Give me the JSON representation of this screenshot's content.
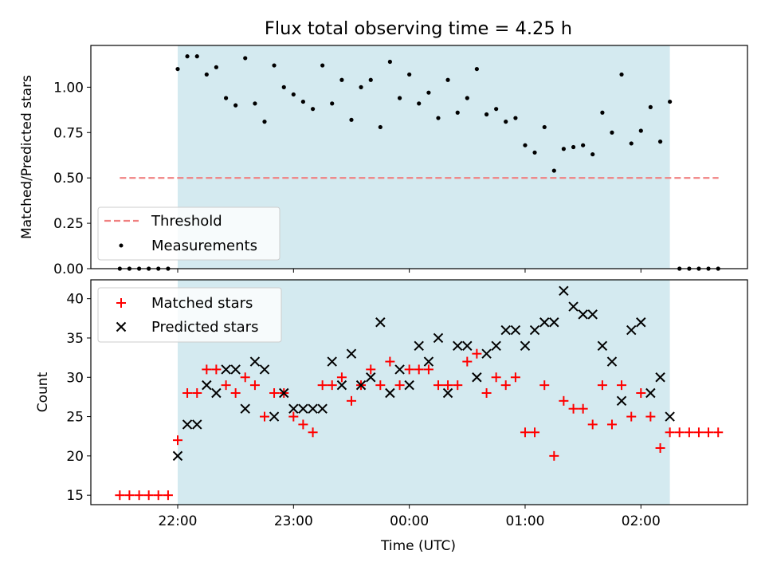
{
  "title": "Flux total observing time = 4.25 h",
  "chart_data": [
    {
      "type": "scatter",
      "ylabel": "Matched/Predicted stars",
      "ylim": [
        0,
        1.23
      ],
      "yticks": [
        0.0,
        0.25,
        0.5,
        0.75,
        1.0
      ],
      "ytick_labels": [
        "0.00",
        "0.25",
        "0.50",
        "0.75",
        "1.00"
      ],
      "threshold": {
        "name": "Threshold",
        "value": 0.5,
        "x_start": 21.5,
        "x_end": 26.67,
        "color": "#f08080"
      },
      "legend": [
        "Threshold",
        "Measurements"
      ],
      "legend_position": "lower-left",
      "series": [
        {
          "name": "Measurements",
          "x": [
            21.5,
            21.583,
            21.667,
            21.75,
            21.833,
            21.917,
            22.0,
            22.083,
            22.167,
            22.25,
            22.333,
            22.417,
            22.5,
            22.583,
            22.667,
            22.75,
            22.833,
            22.917,
            23.0,
            23.083,
            23.167,
            23.25,
            23.333,
            23.417,
            23.5,
            23.583,
            23.667,
            23.75,
            23.833,
            23.917,
            24.0,
            24.083,
            24.167,
            24.25,
            24.333,
            24.417,
            24.5,
            24.583,
            24.667,
            24.75,
            24.833,
            24.917,
            25.0,
            25.083,
            25.167,
            25.25,
            25.333,
            25.417,
            25.5,
            25.583,
            25.667,
            25.75,
            25.833,
            25.917,
            26.0,
            26.083,
            26.167,
            26.25,
            26.333,
            26.417,
            26.5,
            26.583,
            26.667
          ],
          "y": [
            0,
            0,
            0,
            0,
            0,
            0,
            1.1,
            1.17,
            1.17,
            1.07,
            1.11,
            0.94,
            0.9,
            1.16,
            0.91,
            0.81,
            1.12,
            1.0,
            0.96,
            0.92,
            0.88,
            1.12,
            0.91,
            1.04,
            0.82,
            1.0,
            1.04,
            0.78,
            1.14,
            0.94,
            1.07,
            0.91,
            0.97,
            0.83,
            1.04,
            0.86,
            0.94,
            1.1,
            0.85,
            0.88,
            0.81,
            0.83,
            0.68,
            0.64,
            0.78,
            0.54,
            0.66,
            0.67,
            0.68,
            0.63,
            0.86,
            0.75,
            1.07,
            0.69,
            0.76,
            0.89,
            0.7,
            0.92,
            0,
            0,
            0,
            0,
            0
          ]
        }
      ]
    },
    {
      "type": "scatter",
      "xlabel": "Time (UTC)",
      "ylabel": "Count",
      "ylim": [
        13.8,
        42.4
      ],
      "xlim": [
        21.25,
        26.92
      ],
      "yticks": [
        15,
        20,
        25,
        30,
        35,
        40
      ],
      "ytick_labels": [
        "15",
        "20",
        "25",
        "30",
        "35",
        "40"
      ],
      "xticks": [
        22,
        23,
        24,
        25,
        26
      ],
      "xtick_labels": [
        "22:00",
        "23:00",
        "00:00",
        "01:00",
        "02:00"
      ],
      "shaded_range": [
        22.0,
        26.25
      ],
      "legend": [
        "Matched stars",
        "Predicted stars"
      ],
      "legend_position": "top-left",
      "series": [
        {
          "name": "Matched stars",
          "marker": "+",
          "color": "#ff0000",
          "x": [
            21.5,
            21.583,
            21.667,
            21.75,
            21.833,
            21.917,
            22.0,
            22.083,
            22.167,
            22.25,
            22.333,
            22.417,
            22.5,
            22.583,
            22.667,
            22.75,
            22.833,
            22.917,
            23.0,
            23.083,
            23.167,
            23.25,
            23.333,
            23.417,
            23.5,
            23.583,
            23.667,
            23.75,
            23.833,
            23.917,
            24.0,
            24.083,
            24.167,
            24.25,
            24.333,
            24.417,
            24.5,
            24.583,
            24.667,
            24.75,
            24.833,
            24.917,
            25.0,
            25.083,
            25.167,
            25.25,
            25.333,
            25.417,
            25.5,
            25.583,
            25.667,
            25.75,
            25.833,
            25.917,
            26.0,
            26.083,
            26.167,
            26.25,
            26.333,
            26.417,
            26.5,
            26.583,
            26.667
          ],
          "y": [
            15,
            15,
            15,
            15,
            15,
            15,
            22,
            28,
            28,
            31,
            31,
            29,
            28,
            30,
            29,
            25,
            28,
            28,
            25,
            24,
            23,
            29,
            29,
            30,
            27,
            29,
            31,
            29,
            32,
            29,
            31,
            31,
            31,
            29,
            29,
            29,
            32,
            33,
            28,
            30,
            29,
            30,
            23,
            23,
            29,
            20,
            27,
            26,
            26,
            24,
            29,
            24,
            29,
            25,
            28,
            25,
            21,
            23,
            23,
            23,
            23,
            23,
            23
          ]
        },
        {
          "name": "Predicted stars",
          "marker": "x",
          "color": "#000000",
          "x": [
            22.0,
            22.083,
            22.167,
            22.25,
            22.333,
            22.417,
            22.5,
            22.583,
            22.667,
            22.75,
            22.833,
            22.917,
            23.0,
            23.083,
            23.167,
            23.25,
            23.333,
            23.417,
            23.5,
            23.583,
            23.667,
            23.75,
            23.833,
            23.917,
            24.0,
            24.083,
            24.167,
            24.25,
            24.333,
            24.417,
            24.5,
            24.583,
            24.667,
            24.75,
            24.833,
            24.917,
            25.0,
            25.083,
            25.167,
            25.25,
            25.333,
            25.417,
            25.5,
            25.583,
            25.667,
            25.75,
            25.833,
            25.917,
            26.0,
            26.083,
            26.167,
            26.25
          ],
          "y": [
            20,
            24,
            24,
            29,
            28,
            31,
            31,
            26,
            32,
            31,
            25,
            28,
            26,
            26,
            26,
            26,
            32,
            29,
            33,
            29,
            30,
            37,
            28,
            31,
            29,
            34,
            32,
            35,
            28,
            34,
            34,
            30,
            33,
            34,
            36,
            36,
            34,
            36,
            37,
            37,
            41,
            39,
            38,
            38,
            34,
            32,
            27,
            36,
            37,
            28,
            30,
            25
          ]
        }
      ]
    }
  ]
}
